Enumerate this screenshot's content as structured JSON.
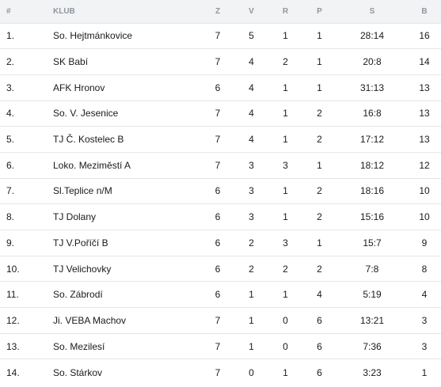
{
  "table": {
    "headers": {
      "rank": "#",
      "club": "KLUB",
      "played": "Z",
      "wins": "V",
      "draws": "R",
      "losses": "P",
      "score": "S",
      "points": "B"
    },
    "rows": [
      {
        "rank": "1.",
        "club": "So. Hejtmánkovice",
        "played": "7",
        "wins": "5",
        "draws": "1",
        "losses": "1",
        "score": "28:14",
        "points": "16"
      },
      {
        "rank": "2.",
        "club": "SK Babí",
        "played": "7",
        "wins": "4",
        "draws": "2",
        "losses": "1",
        "score": "20:8",
        "points": "14"
      },
      {
        "rank": "3.",
        "club": "AFK Hronov",
        "played": "6",
        "wins": "4",
        "draws": "1",
        "losses": "1",
        "score": "31:13",
        "points": "13"
      },
      {
        "rank": "4.",
        "club": "So. V. Jesenice",
        "played": "7",
        "wins": "4",
        "draws": "1",
        "losses": "2",
        "score": "16:8",
        "points": "13"
      },
      {
        "rank": "5.",
        "club": "TJ Č. Kostelec B",
        "played": "7",
        "wins": "4",
        "draws": "1",
        "losses": "2",
        "score": "17:12",
        "points": "13"
      },
      {
        "rank": "6.",
        "club": "Loko. Meziměstí A",
        "played": "7",
        "wins": "3",
        "draws": "3",
        "losses": "1",
        "score": "18:12",
        "points": "12"
      },
      {
        "rank": "7.",
        "club": "Sl.Teplice n/M",
        "played": "6",
        "wins": "3",
        "draws": "1",
        "losses": "2",
        "score": "18:16",
        "points": "10"
      },
      {
        "rank": "8.",
        "club": "TJ Dolany",
        "played": "6",
        "wins": "3",
        "draws": "1",
        "losses": "2",
        "score": "15:16",
        "points": "10"
      },
      {
        "rank": "9.",
        "club": "TJ V.Poříčí B",
        "played": "6",
        "wins": "2",
        "draws": "3",
        "losses": "1",
        "score": "15:7",
        "points": "9"
      },
      {
        "rank": "10.",
        "club": "TJ Velichovky",
        "played": "6",
        "wins": "2",
        "draws": "2",
        "losses": "2",
        "score": "7:8",
        "points": "8"
      },
      {
        "rank": "11.",
        "club": "So. Zábrodí",
        "played": "6",
        "wins": "1",
        "draws": "1",
        "losses": "4",
        "score": "5:19",
        "points": "4"
      },
      {
        "rank": "12.",
        "club": "Ji. VEBA Machov",
        "played": "7",
        "wins": "1",
        "draws": "0",
        "losses": "6",
        "score": "13:21",
        "points": "3"
      },
      {
        "rank": "13.",
        "club": "So. Mezilesí",
        "played": "7",
        "wins": "1",
        "draws": "0",
        "losses": "6",
        "score": "7:36",
        "points": "3"
      },
      {
        "rank": "14.",
        "club": "So. Stárkov",
        "played": "7",
        "wins": "0",
        "draws": "1",
        "losses": "6",
        "score": "3:23",
        "points": "1"
      }
    ]
  }
}
